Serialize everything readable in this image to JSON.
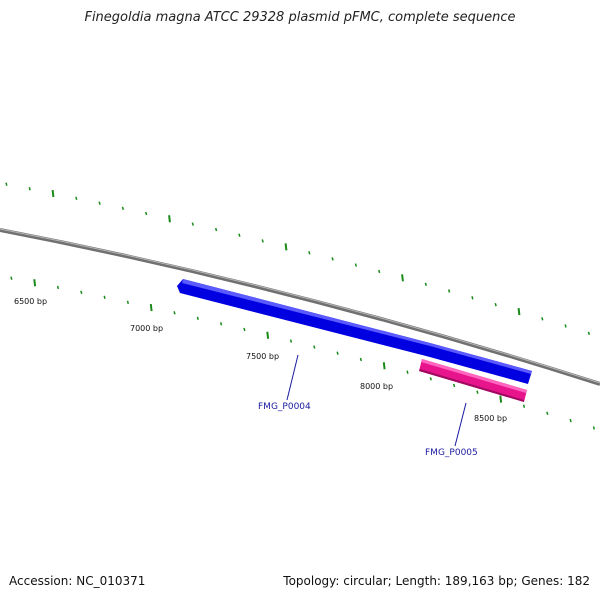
{
  "title": "Finegoldia magna ATCC 29328 plasmid pFMC, complete sequence",
  "footer": {
    "accession": "Accession: NC_010371",
    "summary": "Topology: circular; Length: 189,163 bp; Genes: 182"
  },
  "scale_labels": [
    "6500 bp",
    "7000 bp",
    "7500 bp",
    "8000 bp",
    "8500 bp"
  ],
  "genes": [
    {
      "name": "FMG_P0004",
      "color": "#0000ee",
      "strand": "reverse"
    },
    {
      "name": "FMG_P0005",
      "color": "#ee1199",
      "strand": "reverse"
    }
  ],
  "colors": {
    "backbone": "#808080",
    "ticks": "#1a8a1a"
  }
}
